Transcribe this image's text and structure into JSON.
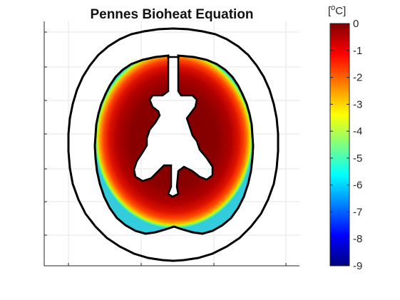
{
  "chart_data": {
    "type": "heatmap",
    "title": "Pennes Bioheat Equation",
    "xlabel": "",
    "ylabel": "",
    "grid": true,
    "colorbar": {
      "label": "[°C]",
      "unit_prefix": "[",
      "unit_degree": "o",
      "unit_main": "C]",
      "location": "right",
      "colormap": "jet",
      "clim": [
        -9,
        0
      ],
      "ticks": [
        0,
        -1,
        -2,
        -3,
        -4,
        -5,
        -6,
        -7,
        -8,
        -9
      ],
      "tick_labels": [
        "0",
        "-1",
        "-2",
        "-3",
        "-4",
        "-5",
        "-6",
        "-7",
        "-8",
        "-9"
      ]
    },
    "field": {
      "description_values": "temperature change, deepest brain tissue near 0, cooling toward outer brain surface",
      "center_value": 0,
      "edge_value_min": -5,
      "outside_value": null
    },
    "overlays": [
      "skull contour",
      "brain contour",
      "ventricle cutout"
    ]
  }
}
